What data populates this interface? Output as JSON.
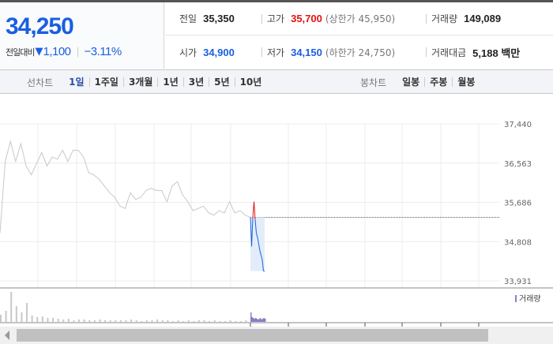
{
  "quote": {
    "price": "34,250",
    "change_label": "전일대비",
    "change": "1,100",
    "change_pct": "−3.11%",
    "direction_icon": "triangle-down-icon"
  },
  "stats": {
    "prev_label": "전일",
    "prev": "35,350",
    "high_label": "고가",
    "high": "35,700",
    "upper_limit": "(상한가 45,950)",
    "volume_label": "거래량",
    "volume": "149,089",
    "open_label": "시가",
    "open": "34,900",
    "low_label": "저가",
    "low": "34,150",
    "lower_limit": "(하한가 24,750)",
    "amount_label": "거래대금",
    "amount": "5,188 백만"
  },
  "line_tabs": {
    "title": "선차트",
    "items": [
      "1일",
      "1주일",
      "3개월",
      "1년",
      "3년",
      "5년",
      "10년"
    ],
    "active": 0
  },
  "candle_tabs": {
    "title": "봉차트",
    "items": [
      "일봉",
      "주봉",
      "월봉"
    ]
  },
  "colors": {
    "up": "#e81010",
    "down": "#1a5fe0",
    "prev_day": "#c8c8c8",
    "volume_today": "#8e7cc3"
  },
  "chart_data": {
    "type": "line",
    "y_ticks": [
      "37,440",
      "36,563",
      "35,686",
      "34,808",
      "33,931"
    ],
    "ylim": [
      33931,
      37440
    ],
    "reference_line": 35350,
    "previous_day": [
      35000,
      36600,
      37050,
      36600,
      37000,
      36500,
      36300,
      36550,
      36800,
      36500,
      36700,
      36650,
      36850,
      36600,
      36850,
      36850,
      36700,
      36350,
      36300,
      36200,
      36050,
      35900,
      35800,
      35600,
      35550,
      35900,
      35750,
      35800,
      35950,
      36000,
      35950,
      35950,
      35700,
      36050,
      36150,
      35850,
      35700,
      35500,
      35550,
      35600,
      35450,
      35400,
      35500,
      35450,
      35700,
      35450,
      35500,
      35400,
      35350
    ],
    "today": [
      35350,
      34700,
      35350,
      35700,
      35300,
      35000,
      34900,
      34750,
      34600,
      34500,
      34400,
      34150,
      34150
    ],
    "volume_legend": "거래량",
    "previous_day_volume": [
      9,
      14,
      38,
      20,
      12,
      24,
      8,
      6,
      7,
      5,
      5,
      4,
      3,
      4,
      2,
      3,
      3,
      2,
      2,
      3,
      2,
      2,
      2,
      2,
      2,
      3,
      2,
      1,
      2,
      2,
      3,
      2,
      2,
      1,
      2,
      1,
      2,
      1,
      2,
      2,
      1,
      2,
      1,
      1,
      2,
      1,
      1,
      2,
      2
    ],
    "today_volume": [
      12,
      6,
      5,
      4,
      5,
      4,
      3,
      4,
      5,
      3,
      4,
      5,
      4
    ]
  }
}
